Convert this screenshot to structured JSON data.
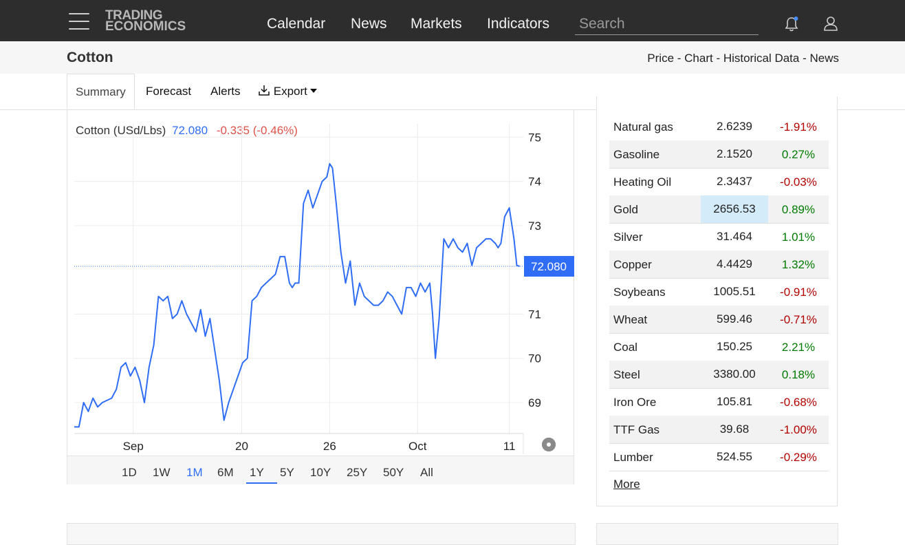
{
  "nav": {
    "logo_line1": "TRADING",
    "logo_line2": "ECONOMICS",
    "links": [
      "Calendar",
      "News",
      "Markets",
      "Indicators"
    ],
    "search_placeholder": "Search"
  },
  "subheader": {
    "title": "Cotton",
    "crumbs": [
      "Price",
      "Chart",
      "Historical Data",
      "News"
    ],
    "separator": " - "
  },
  "tabs": {
    "summary": "Summary",
    "forecast": "Forecast",
    "alerts": "Alerts",
    "export": "Export"
  },
  "chart": {
    "legend_name": "Cotton (USd/Lbs)",
    "legend_price": "72.080",
    "legend_change": "-0.335 (-0.46%)",
    "last_label": "72.080",
    "line_color": "#2f6df6",
    "ranges": [
      "1D",
      "1W",
      "1M",
      "6M",
      "1Y",
      "5Y",
      "10Y",
      "25Y",
      "50Y",
      "All"
    ],
    "active_range": "1M"
  },
  "chart_data": {
    "type": "line",
    "title": "Cotton (USd/Lbs)",
    "y_ticks": [
      69,
      70,
      71,
      72,
      73,
      74,
      75
    ],
    "y_tick_labels": [
      "69",
      "70",
      "71",
      "72.080",
      "73",
      "74",
      "75"
    ],
    "ylim": [
      68.3,
      75.3
    ],
    "x_tick_labels": [
      "Sep",
      "20",
      "26",
      "Oct",
      "11"
    ],
    "x_tick_positions": [
      7.3,
      18.9,
      28.3,
      37.7,
      47.5
    ],
    "xlim": [
      1,
      49
    ],
    "series": [
      {
        "name": "Cotton (USd/Lbs)",
        "x": [
          1,
          1.5,
          2,
          2.5,
          3,
          3.5,
          4,
          5,
          5.5,
          6,
          6.5,
          7,
          7.5,
          8,
          8.5,
          9,
          9.5,
          10,
          10.5,
          11,
          11.5,
          12,
          12.5,
          13,
          14,
          14.5,
          15,
          15.5,
          16,
          16.5,
          17,
          17.5,
          18,
          18.5,
          19,
          19.5,
          20,
          20.5,
          21,
          21.5,
          22,
          22.5,
          23,
          23.5,
          24,
          24.3,
          24.6,
          25,
          25.5,
          26,
          26.5,
          27,
          27.5,
          28,
          28.3,
          28.6,
          29,
          29.5,
          30,
          30.5,
          31,
          31.5,
          32,
          32.5,
          33,
          33.5,
          34,
          34.5,
          35,
          35.5,
          36,
          36.5,
          37,
          37.5,
          38,
          38.5,
          39,
          39.3,
          39.6,
          40,
          40.5,
          41,
          41.5,
          42,
          42.5,
          43,
          43.5,
          44,
          44.5,
          45,
          45.5,
          46,
          46.3,
          46.6,
          47,
          47.5,
          48,
          48.3,
          48.6
        ],
        "values": [
          68.45,
          68.45,
          69.0,
          68.8,
          69.1,
          68.9,
          69.0,
          69.1,
          69.3,
          69.8,
          69.9,
          69.6,
          69.8,
          69.5,
          69.0,
          69.8,
          70.3,
          71.4,
          71.3,
          71.4,
          70.9,
          71.0,
          71.3,
          71.0,
          70.6,
          71.1,
          70.5,
          70.9,
          70.2,
          69.5,
          68.6,
          69.0,
          69.3,
          69.6,
          69.9,
          70.0,
          71.3,
          71.4,
          71.6,
          71.7,
          71.8,
          71.9,
          72.3,
          72.3,
          71.7,
          71.6,
          71.7,
          71.7,
          73.5,
          73.8,
          73.4,
          73.7,
          74.0,
          74.1,
          74.4,
          74.3,
          73.5,
          72.4,
          71.7,
          72.2,
          71.2,
          71.7,
          71.4,
          71.3,
          71.2,
          71.2,
          71.3,
          71.5,
          71.4,
          71.2,
          71.0,
          71.6,
          71.6,
          71.4,
          71.7,
          71.5,
          71.7,
          71.0,
          70.0,
          70.9,
          72.7,
          72.5,
          72.7,
          72.5,
          72.4,
          72.6,
          72.1,
          72.5,
          72.6,
          72.7,
          72.7,
          72.6,
          72.5,
          72.6,
          73.2,
          73.4,
          72.7,
          72.1,
          72.08
        ]
      }
    ],
    "grid": true,
    "legend": "top-left"
  },
  "commodities": {
    "rows": [
      {
        "name": "Natural gas",
        "value": "2.6239",
        "change": "-1.91%",
        "dir": "neg",
        "highlight": false
      },
      {
        "name": "Gasoline",
        "value": "2.1520",
        "change": "0.27%",
        "dir": "pos",
        "highlight": false
      },
      {
        "name": "Heating Oil",
        "value": "2.3437",
        "change": "-0.03%",
        "dir": "neg",
        "highlight": false
      },
      {
        "name": "Gold",
        "value": "2656.53",
        "change": "0.89%",
        "dir": "pos",
        "highlight": true
      },
      {
        "name": "Silver",
        "value": "31.464",
        "change": "1.01%",
        "dir": "pos",
        "highlight": false
      },
      {
        "name": "Copper",
        "value": "4.4429",
        "change": "1.32%",
        "dir": "pos",
        "highlight": false
      },
      {
        "name": "Soybeans",
        "value": "1005.51",
        "change": "-0.91%",
        "dir": "neg",
        "highlight": false
      },
      {
        "name": "Wheat",
        "value": "599.46",
        "change": "-0.71%",
        "dir": "neg",
        "highlight": false
      },
      {
        "name": "Coal",
        "value": "150.25",
        "change": "2.21%",
        "dir": "pos",
        "highlight": false
      },
      {
        "name": "Steel",
        "value": "3380.00",
        "change": "0.18%",
        "dir": "pos",
        "highlight": false
      },
      {
        "name": "Iron Ore",
        "value": "105.81",
        "change": "-0.68%",
        "dir": "neg",
        "highlight": false
      },
      {
        "name": "TTF Gas",
        "value": "39.68",
        "change": "-1.00%",
        "dir": "neg",
        "highlight": false
      },
      {
        "name": "Lumber",
        "value": "524.55",
        "change": "-0.29%",
        "dir": "neg",
        "highlight": false
      }
    ],
    "more": "More"
  }
}
